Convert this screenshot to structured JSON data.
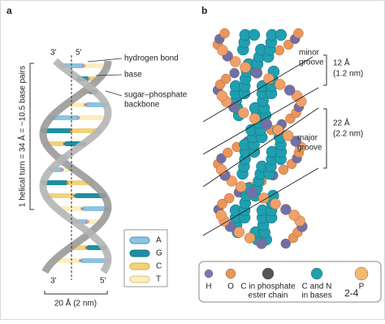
{
  "panel_a": {
    "label": "a",
    "top_labels": [
      "3'",
      "5'"
    ],
    "bottom_labels": [
      "3'",
      "5'"
    ],
    "callouts": {
      "hydrogen_bond": "hydrogen bond",
      "base": "base",
      "backbone": [
        "sugar–phosphate",
        "backbone"
      ]
    },
    "helical_turn": "1 helical turn = 34 Å = ~10.5 base pairs",
    "width": "20 Å (2 nm)",
    "legend": [
      "A",
      "G",
      "C",
      "T"
    ]
  },
  "panel_b": {
    "label": "b",
    "minor": {
      "size": [
        "12 Å",
        "(1.2 nm)"
      ],
      "name": [
        "minor",
        "groove"
      ]
    },
    "major": {
      "size": [
        "22 Å",
        "(2.2 nm)"
      ],
      "name": [
        "major",
        "groove"
      ]
    },
    "legend": {
      "items": [
        "H",
        "O",
        [
          "C in phosphate",
          "ester chain"
        ],
        [
          "C and N",
          "in bases"
        ],
        "P"
      ],
      "note": "2-4"
    }
  }
}
